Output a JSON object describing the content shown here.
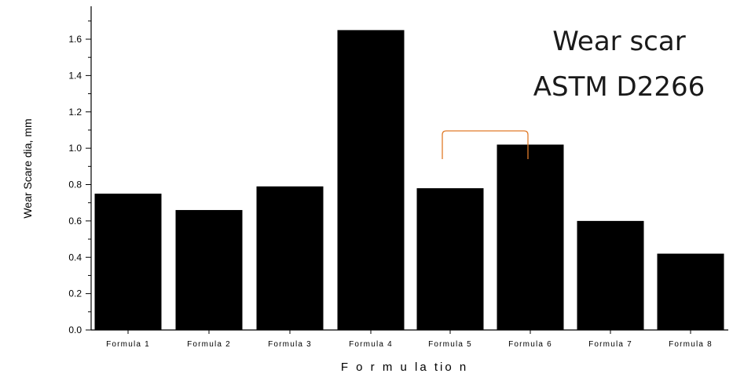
{
  "chart_data": {
    "type": "bar",
    "categories": [
      "Formula 1",
      "Formula 2",
      "Formula 3",
      "Formula 4",
      "Formula 5",
      "Formula 6",
      "Formula 7",
      "Formula 8"
    ],
    "values": [
      0.75,
      0.66,
      0.79,
      1.65,
      0.78,
      1.02,
      0.6,
      0.42
    ],
    "xlabel": "F o r m u la tio n",
    "ylabel": "Wear Scare dia, mm",
    "ylim": [
      0,
      1.8
    ],
    "yticks": [
      "0.0",
      "0.2",
      "0.4",
      "0.6",
      "0.8",
      "1.0",
      "1.2",
      "1.4",
      "1.6"
    ],
    "grid": false,
    "bar_color": "#000000",
    "annotation": {
      "line1": "Wear scar",
      "line2": "ASTM D2266",
      "bracket_between": [
        "Formula 5",
        "Formula 6"
      ],
      "bracket_color": "#e07b2a"
    }
  }
}
